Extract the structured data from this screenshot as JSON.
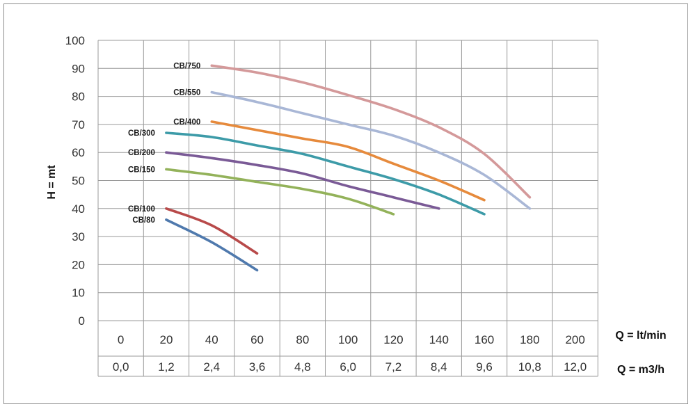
{
  "chart_data": {
    "type": "line",
    "ylabel": "H = mt",
    "xlabel_flow_lpm": "Q = lt/min",
    "xlabel_flow_m3h": "Q = m3/h",
    "ylim": [
      0,
      100
    ],
    "yticks": [
      "0",
      "10",
      "20",
      "30",
      "40",
      "50",
      "60",
      "70",
      "80",
      "90",
      "100"
    ],
    "xticks_lpm": [
      "0",
      "20",
      "40",
      "60",
      "80",
      "100",
      "120",
      "140",
      "160",
      "180",
      "200"
    ],
    "xticks_m3h": [
      "0,0",
      "1,2",
      "2,4",
      "3,6",
      "4,8",
      "6,0",
      "7,2",
      "8,4",
      "9,6",
      "10,8",
      "12,0"
    ],
    "grid": true,
    "series": [
      {
        "name": "CB/750",
        "color": "#d4999a",
        "points": [
          [
            40,
            91
          ],
          [
            60,
            88.5
          ],
          [
            80,
            85
          ],
          [
            100,
            80.5
          ],
          [
            120,
            75.5
          ],
          [
            140,
            69
          ],
          [
            160,
            59.5
          ],
          [
            180,
            44
          ]
        ]
      },
      {
        "name": "CB/550",
        "color": "#a9b7d6",
        "points": [
          [
            40,
            81.5
          ],
          [
            60,
            78
          ],
          [
            80,
            74
          ],
          [
            100,
            70
          ],
          [
            120,
            66
          ],
          [
            140,
            60
          ],
          [
            160,
            52
          ],
          [
            180,
            40
          ]
        ]
      },
      {
        "name": "CB/400",
        "color": "#e68a3c",
        "points": [
          [
            40,
            71
          ],
          [
            60,
            68
          ],
          [
            80,
            65
          ],
          [
            100,
            62
          ],
          [
            120,
            56
          ],
          [
            140,
            50
          ],
          [
            160,
            43
          ]
        ]
      },
      {
        "name": "CB/300",
        "color": "#3d9ba8",
        "points": [
          [
            20,
            67
          ],
          [
            40,
            65.5
          ],
          [
            60,
            62.5
          ],
          [
            80,
            59.5
          ],
          [
            100,
            55
          ],
          [
            120,
            50.5
          ],
          [
            140,
            45
          ],
          [
            160,
            38
          ]
        ]
      },
      {
        "name": "CB/200",
        "color": "#7a5a96",
        "points": [
          [
            20,
            60
          ],
          [
            40,
            58
          ],
          [
            60,
            55.5
          ],
          [
            80,
            52.5
          ],
          [
            100,
            48
          ],
          [
            120,
            44
          ],
          [
            140,
            40
          ]
        ]
      },
      {
        "name": "CB/150",
        "color": "#93b25a",
        "points": [
          [
            20,
            54
          ],
          [
            40,
            52
          ],
          [
            60,
            49.5
          ],
          [
            80,
            47
          ],
          [
            100,
            43.5
          ],
          [
            120,
            38
          ]
        ]
      },
      {
        "name": "CB/100",
        "color": "#b84a4a",
        "points": [
          [
            20,
            40
          ],
          [
            40,
            34
          ],
          [
            60,
            24
          ]
        ]
      },
      {
        "name": "CB/80",
        "color": "#4f79ad",
        "points": [
          [
            20,
            36
          ],
          [
            40,
            28
          ],
          [
            60,
            18
          ]
        ]
      }
    ]
  }
}
